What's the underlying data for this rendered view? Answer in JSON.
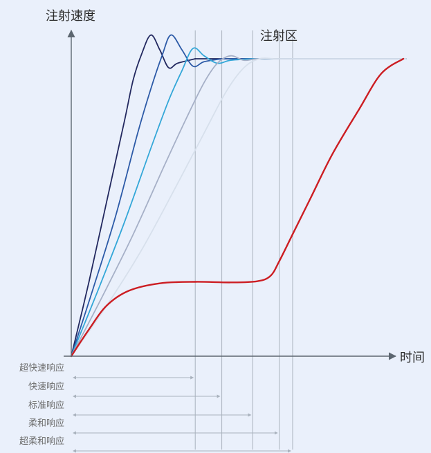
{
  "chart_data": {
    "type": "line",
    "title": "",
    "ylabel": "注射速度",
    "xlabel": "时间",
    "annotations": [
      "注射区"
    ],
    "legend": "none",
    "grid": false,
    "colors": {
      "background": "#eaf0fb",
      "axis": "#5c6670",
      "guide": "#a9b2bd",
      "red": "#cc1d22",
      "ultra_fast": "#22285f",
      "fast": "#2c5aa7",
      "standard": "#33a7d8",
      "soft": "#a6b0c7",
      "ultra_soft": "#d7e0ec"
    },
    "response_labels": [
      "超快速响应",
      "快速响应",
      "标准响应",
      "柔和响应",
      "超柔和响应"
    ],
    "series": [
      {
        "key": "ultra_fast",
        "x": [
          0.0,
          0.08,
          0.16,
          0.24,
          0.28,
          0.32,
          0.36,
          0.4,
          0.44,
          0.48,
          0.56
        ],
        "y": [
          0.0,
          0.25,
          0.52,
          0.79,
          0.93,
          1.02,
          1.08,
          1.03,
          0.97,
          0.985,
          1.0
        ]
      },
      {
        "key": "fast",
        "x": [
          0.0,
          0.1,
          0.2,
          0.3,
          0.36,
          0.41,
          0.45,
          0.5,
          0.55,
          0.6,
          0.68
        ],
        "y": [
          0.0,
          0.23,
          0.47,
          0.75,
          0.9,
          1.01,
          1.08,
          1.03,
          0.975,
          0.99,
          1.0
        ]
      },
      {
        "key": "standard",
        "x": [
          0.0,
          0.12,
          0.24,
          0.36,
          0.44,
          0.5,
          0.55,
          0.6,
          0.66,
          0.72,
          0.82
        ],
        "y": [
          0.0,
          0.22,
          0.45,
          0.7,
          0.86,
          0.96,
          1.035,
          1.01,
          0.985,
          0.995,
          1.0
        ]
      },
      {
        "key": "soft",
        "x": [
          0.0,
          0.14,
          0.28,
          0.42,
          0.52,
          0.6,
          0.66,
          0.72,
          0.78,
          0.84,
          0.94
        ],
        "y": [
          0.0,
          0.2,
          0.41,
          0.64,
          0.8,
          0.92,
          0.985,
          1.01,
          0.995,
          1.0,
          1.0
        ]
      },
      {
        "key": "ultra_soft",
        "x": [
          0.0,
          0.16,
          0.32,
          0.48,
          0.6,
          0.7,
          0.78,
          0.85,
          0.92,
          1.0
        ],
        "y": [
          0.0,
          0.17,
          0.36,
          0.58,
          0.75,
          0.89,
          0.97,
          1.0,
          1.0,
          1.0
        ]
      },
      {
        "key": "red",
        "x": [
          0.0,
          0.08,
          0.16,
          0.26,
          0.4,
          0.56,
          0.72,
          0.84,
          0.9,
          0.94,
          1.0,
          1.08,
          1.18,
          1.3,
          1.4,
          1.5
        ],
        "y": [
          0.0,
          0.09,
          0.17,
          0.22,
          0.245,
          0.25,
          0.248,
          0.252,
          0.27,
          0.32,
          0.41,
          0.53,
          0.68,
          0.83,
          0.95,
          1.0
        ]
      }
    ],
    "response_end_x": [
      0.56,
      0.68,
      0.82,
      0.94,
      1.0
    ]
  }
}
